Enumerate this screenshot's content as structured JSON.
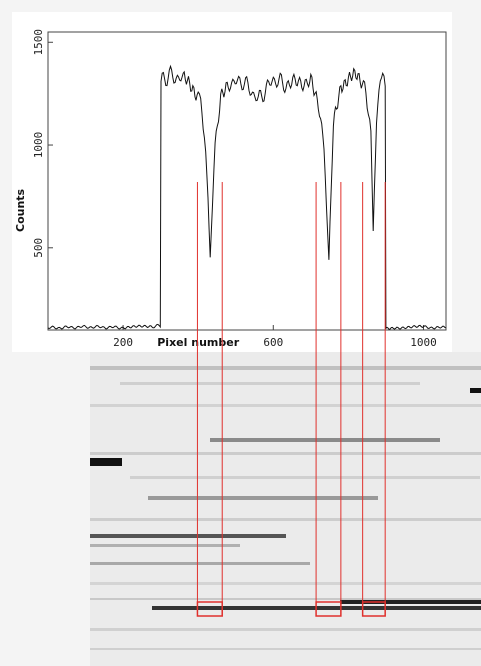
{
  "chart_data": {
    "type": "line",
    "title": "",
    "xlabel": "Pixel number",
    "ylabel": "Counts",
    "xlim": [
      0,
      1060
    ],
    "ylim": [
      100,
      1550
    ],
    "x_ticks": [
      200,
      600,
      1000
    ],
    "y_ticks": [
      500,
      1000,
      1500
    ],
    "grid": false,
    "series": [
      {
        "values_x": [
          0,
          100,
          200,
          280,
          299,
          301,
          320,
          360,
          380,
          400,
          410,
          420,
          432,
          445,
          460,
          480,
          520,
          560,
          600,
          640,
          700,
          720,
          735,
          748,
          760,
          780,
          800,
          820,
          840,
          850,
          860,
          866,
          875,
          885,
          898,
          900,
          920,
          1000,
          1060
        ],
        "values_y": [
          110,
          115,
          112,
          118,
          120,
          1300,
          1340,
          1320,
          1280,
          1250,
          1180,
          980,
          460,
          1000,
          1260,
          1300,
          1310,
          1220,
          1320,
          1290,
          1320,
          1220,
          1000,
          440,
          1100,
          1300,
          1320,
          1330,
          1300,
          1200,
          1100,
          580,
          1150,
          1320,
          1300,
          110,
          112,
          115,
          110
        ],
        "color": "#111111"
      }
    ],
    "markers": [
      {
        "x0": 398,
        "x1": 464
      },
      {
        "x0": 714,
        "x1": 780
      },
      {
        "x0": 838,
        "x1": 898
      }
    ],
    "marker_color": "#e0302c"
  }
}
